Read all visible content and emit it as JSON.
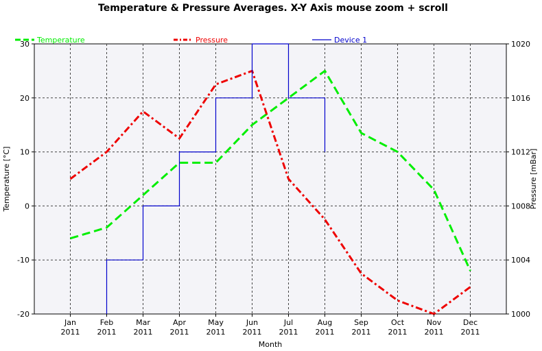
{
  "chart_data": {
    "type": "line",
    "title": "Temperature & Pressure Averages. X-Y Axis mouse zoom + scroll",
    "xlabel": "Month",
    "ylabel_left": "Temperature [°C]",
    "ylabel_right": "Pressure [mBar]",
    "ylim_left": [
      -20,
      30
    ],
    "ylim_right": [
      1000,
      1020
    ],
    "yticks_left": [
      "-20",
      "-10",
      "0",
      "10",
      "20",
      "30"
    ],
    "yticks_right": [
      "1000",
      "1004",
      "1008",
      "1012",
      "1016",
      "1020"
    ],
    "grid": true,
    "legend_position": "top",
    "categories": [
      {
        "month": "Jan",
        "year": "2011"
      },
      {
        "month": "Feb",
        "year": "2011"
      },
      {
        "month": "Mar",
        "year": "2011"
      },
      {
        "month": "Apr",
        "year": "2011"
      },
      {
        "month": "May",
        "year": "2011"
      },
      {
        "month": "Jun",
        "year": "2011"
      },
      {
        "month": "Jul",
        "year": "2011"
      },
      {
        "month": "Aug",
        "year": "2011"
      },
      {
        "month": "Sep",
        "year": "2011"
      },
      {
        "month": "Oct",
        "year": "2011"
      },
      {
        "month": "Nov",
        "year": "2011"
      },
      {
        "month": "Dec",
        "year": "2011"
      }
    ],
    "series": [
      {
        "name": "Temperature",
        "axis": "left",
        "color": "#00ee00",
        "style": "dashed",
        "values": [
          -6,
          -4,
          2,
          8,
          8,
          15,
          20,
          25,
          13.5,
          10,
          3,
          -12
        ]
      },
      {
        "name": "Pressure",
        "axis": "right",
        "color": "#ee0000",
        "style": "dashdot",
        "values": [
          1010,
          1012,
          1015,
          1013,
          1017,
          1018,
          1010,
          1007,
          1003,
          1001,
          1000,
          1002
        ]
      },
      {
        "name": "Device 1",
        "axis": "left",
        "color": "#0000cc",
        "style": "step",
        "x": [
          "Feb",
          "Feb",
          "Mar",
          "Mar",
          "Apr",
          "Apr",
          "May",
          "May",
          "Jun",
          "Jun",
          "Jul",
          "Jul",
          "Aug",
          "Aug"
        ],
        "values": [
          -20,
          -10,
          -10,
          0,
          0,
          10,
          10,
          20,
          20,
          30,
          30,
          20,
          20,
          10
        ]
      }
    ]
  }
}
